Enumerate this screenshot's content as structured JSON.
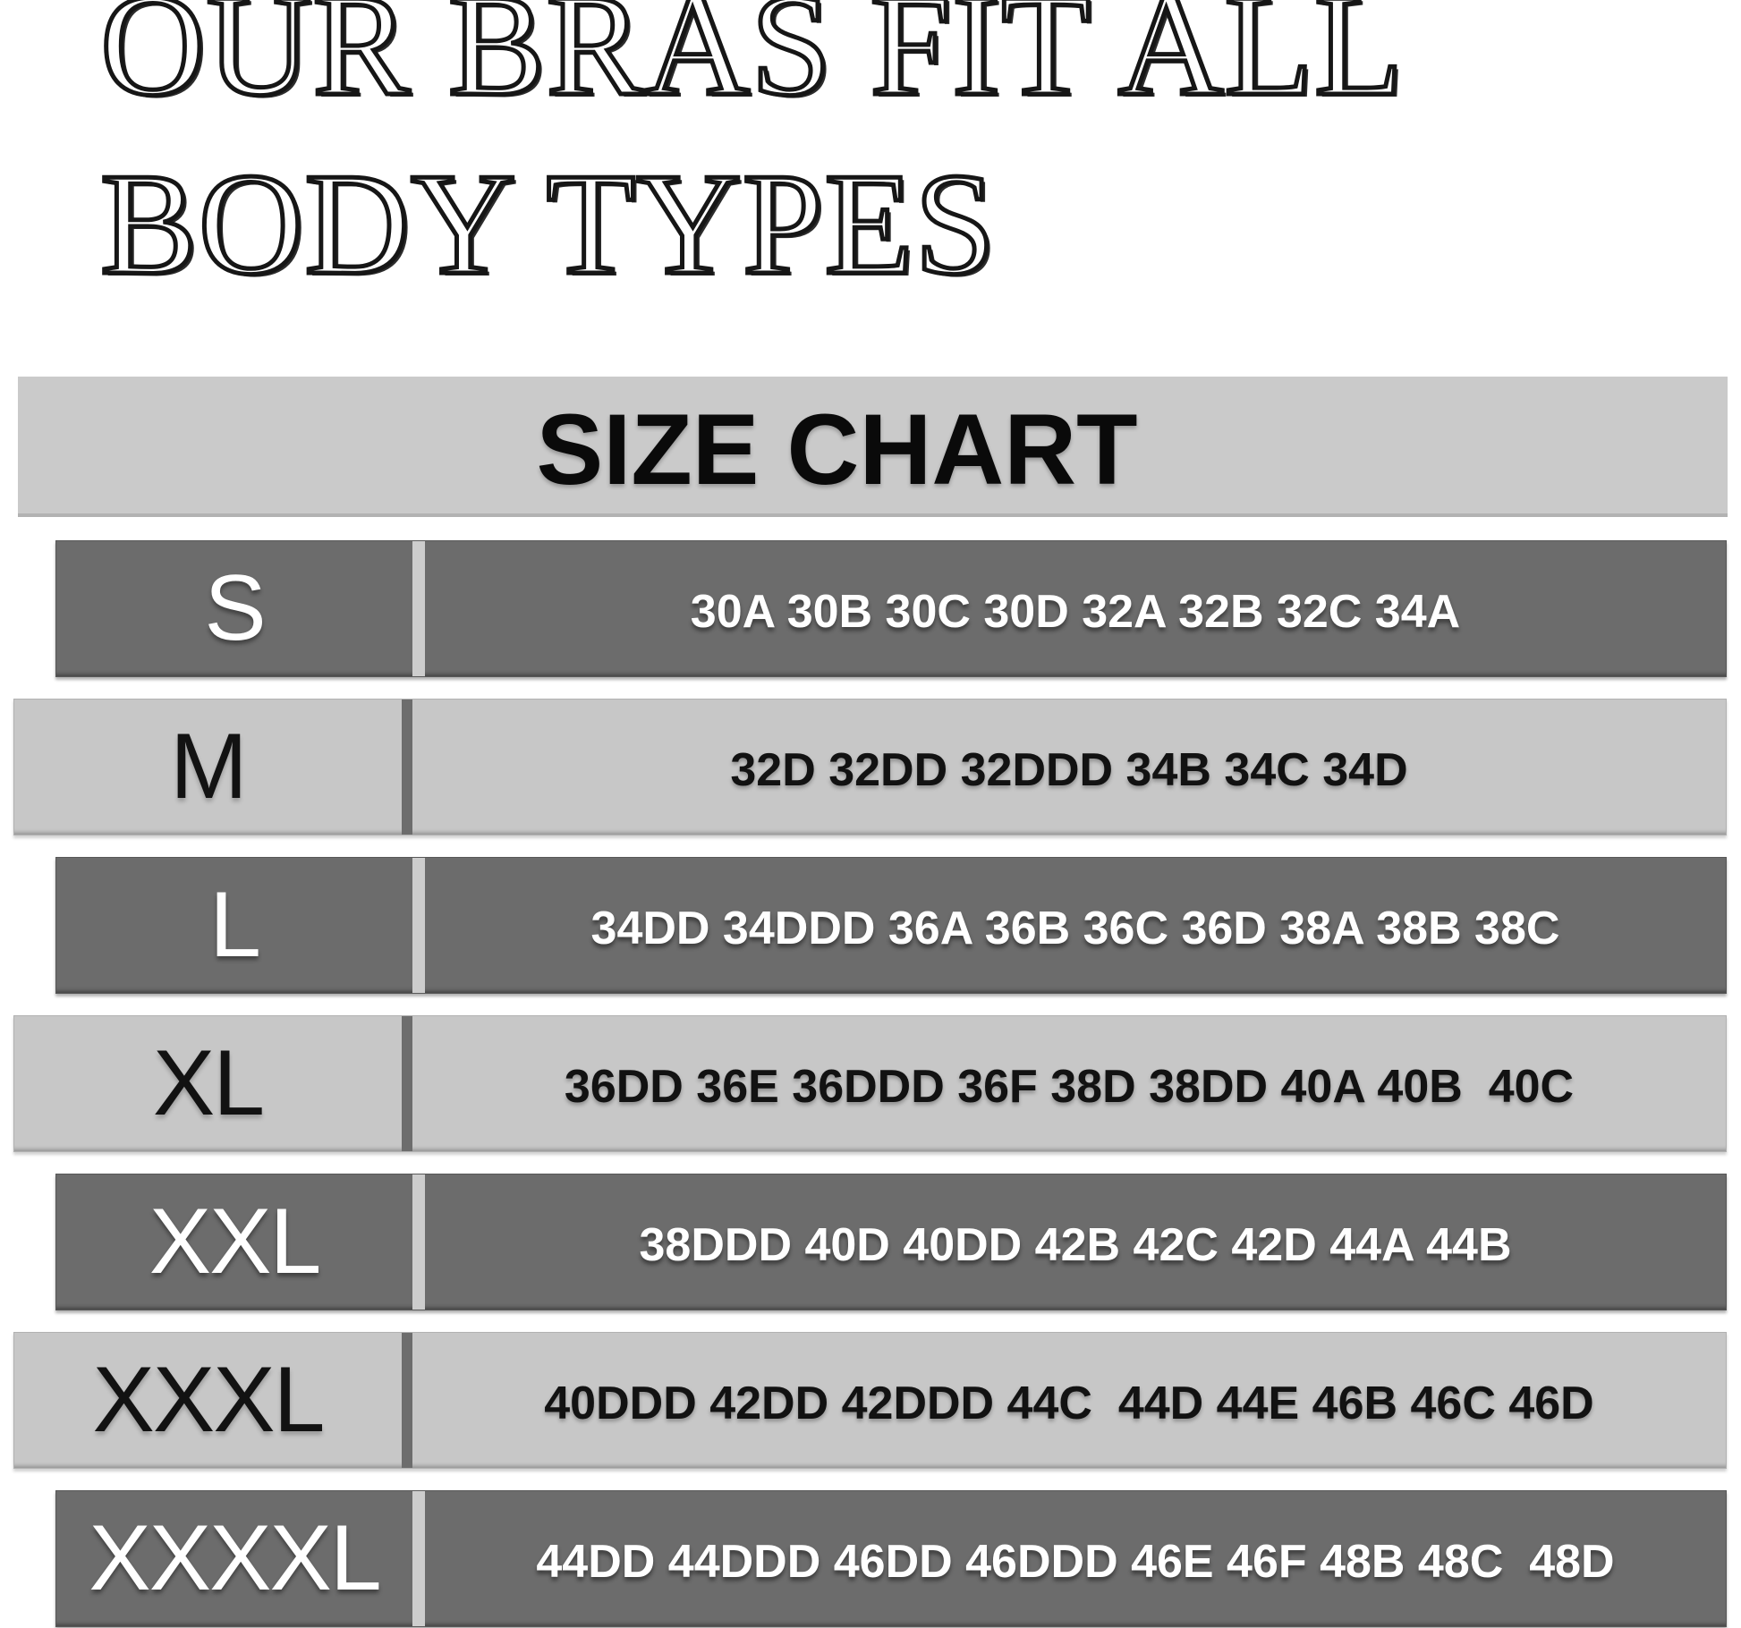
{
  "title": {
    "line1": "OUR BRAS FIT ALL",
    "line2": "BODY TYPES"
  },
  "size_chart": {
    "header": "SIZE CHART",
    "rows": [
      {
        "size": "S",
        "theme": "dark",
        "bra_sizes": "30A 30B 30C 30D 32A 32B 32C 34A"
      },
      {
        "size": "M",
        "theme": "light",
        "bra_sizes": "32D 32DD 32DDD 34B 34C 34D"
      },
      {
        "size": "L",
        "theme": "dark",
        "bra_sizes": "34DD 34DDD 36A 36B 36C 36D 38A 38B 38C"
      },
      {
        "size": "XL",
        "theme": "light",
        "bra_sizes": "36DD 36E 36DDD 36F 38D 38DD 40A 40B  40C"
      },
      {
        "size": "XXL",
        "theme": "dark",
        "bra_sizes": "38DDD 40D 40DD 42B 42C 42D 44A 44B"
      },
      {
        "size": "XXXL",
        "theme": "light",
        "bra_sizes": "40DDD 42DD 42DDD 44C  44D 44E 46B 46C 46D"
      },
      {
        "size": "XXXXL",
        "theme": "dark",
        "bra_sizes": "44DD 44DDD 46DD 46DDD 46E 46F 48B 48C  48D"
      }
    ]
  },
  "colors": {
    "page_bg": "#ffffff",
    "header_band": "#cacaca",
    "dark_row": "#6c6c6c",
    "light_row": "#c7c7c7",
    "dark_row_text": "#ffffff",
    "light_row_text": "#121212"
  },
  "chart_data": {
    "type": "table",
    "title": "SIZE CHART",
    "columns": [
      "size",
      "bra_sizes"
    ],
    "rows": [
      [
        "S",
        "30A 30B 30C 30D 32A 32B 32C 34A"
      ],
      [
        "M",
        "32D 32DD 32DDD 34B 34C 34D"
      ],
      [
        "L",
        "34DD 34DDD 36A 36B 36C 36D 38A 38B 38C"
      ],
      [
        "XL",
        "36DD 36E 36DDD 36F 38D 38DD 40A 40B 40C"
      ],
      [
        "XXL",
        "38DDD 40D 40DD 42B 42C 42D 44A 44B"
      ],
      [
        "XXXL",
        "40DDD 42DD 42DDD 44C 44D 44E 46B 46C 46D"
      ],
      [
        "XXXXL",
        "44DD 44DDD 46DD 46DDD 46E 46F 48B 48C 48D"
      ]
    ]
  }
}
